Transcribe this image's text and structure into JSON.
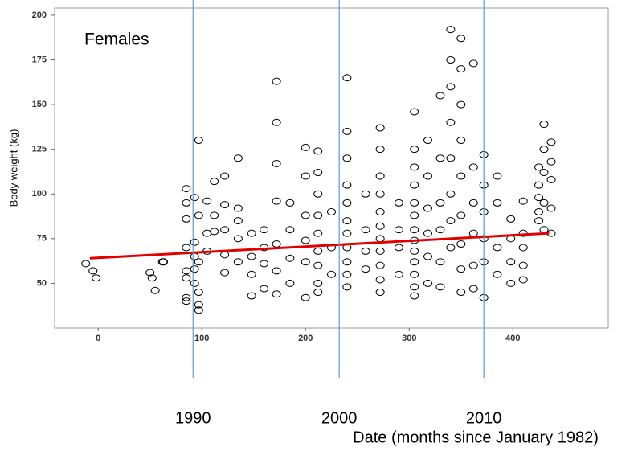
{
  "chart_data": {
    "type": "scatter",
    "annotation": "Females",
    "y_label": "Body weight (kg)",
    "x_label": "Date (months since January 1982)",
    "xlim": [
      -42,
      492
    ],
    "xticks": [
      0,
      100,
      200,
      300,
      400
    ],
    "ylim": [
      25,
      204
    ],
    "yticks": [
      50,
      75,
      100,
      125,
      150,
      175,
      200
    ],
    "grid": false,
    "marker_color": "#000000",
    "x": [
      -12,
      -5,
      -2,
      50,
      52,
      55,
      62,
      63,
      85,
      85,
      85,
      85,
      85,
      85,
      85,
      85,
      93,
      93,
      93,
      93,
      93,
      97,
      97,
      97,
      97,
      97,
      97,
      105,
      105,
      105,
      112,
      112,
      112,
      122,
      122,
      122,
      122,
      122,
      135,
      135,
      135,
      135,
      135,
      148,
      148,
      148,
      148,
      160,
      160,
      160,
      160,
      172,
      172,
      172,
      172,
      172,
      172,
      172,
      185,
      185,
      185,
      185,
      200,
      200,
      200,
      200,
      200,
      200,
      212,
      212,
      212,
      212,
      212,
      212,
      212,
      212,
      212,
      225,
      225,
      225,
      240,
      240,
      240,
      240,
      240,
      240,
      240,
      240,
      240,
      240,
      240,
      258,
      258,
      258,
      258,
      272,
      272,
      272,
      272,
      272,
      272,
      272,
      272,
      272,
      272,
      272,
      290,
      290,
      290,
      290,
      305,
      305,
      305,
      305,
      305,
      305,
      305,
      305,
      305,
      305,
      305,
      305,
      305,
      318,
      318,
      318,
      318,
      318,
      318,
      330,
      330,
      330,
      330,
      330,
      330,
      340,
      340,
      340,
      340,
      340,
      340,
      340,
      340,
      350,
      350,
      350,
      350,
      350,
      350,
      350,
      350,
      350,
      362,
      362,
      362,
      362,
      362,
      362,
      372,
      372,
      372,
      372,
      372,
      372,
      385,
      385,
      385,
      385,
      398,
      398,
      398,
      398,
      410,
      410,
      410,
      410,
      410,
      425,
      425,
      425,
      425,
      425,
      430,
      430,
      430,
      430,
      430,
      437,
      437,
      437,
      437,
      437
    ],
    "values": [
      61,
      57,
      53,
      56,
      53,
      46,
      62,
      62,
      103,
      95,
      86,
      70,
      57,
      53,
      42,
      40,
      98,
      73,
      65,
      58,
      50,
      130,
      88,
      62,
      45,
      38,
      35,
      96,
      78,
      68,
      107,
      88,
      79,
      110,
      94,
      80,
      66,
      56,
      120,
      92,
      85,
      75,
      62,
      78,
      65,
      55,
      43,
      80,
      70,
      61,
      47,
      163,
      140,
      117,
      96,
      72,
      57,
      44,
      95,
      80,
      64,
      50,
      126,
      110,
      88,
      74,
      62,
      42,
      124,
      112,
      100,
      88,
      78,
      68,
      60,
      50,
      45,
      90,
      70,
      55,
      165,
      135,
      120,
      105,
      95,
      85,
      78,
      70,
      62,
      55,
      48,
      100,
      80,
      68,
      58,
      137,
      125,
      110,
      100,
      90,
      82,
      75,
      68,
      60,
      52,
      45,
      95,
      80,
      70,
      55,
      146,
      125,
      115,
      105,
      95,
      88,
      80,
      74,
      68,
      62,
      55,
      48,
      43,
      130,
      110,
      92,
      78,
      65,
      50,
      155,
      120,
      95,
      80,
      62,
      48,
      192,
      175,
      160,
      140,
      120,
      100,
      85,
      70,
      187,
      170,
      150,
      130,
      110,
      88,
      72,
      58,
      45,
      173,
      115,
      95,
      78,
      60,
      47,
      122,
      105,
      90,
      75,
      62,
      42,
      110,
      95,
      70,
      55,
      86,
      75,
      62,
      50,
      96,
      78,
      70,
      60,
      52,
      115,
      105,
      98,
      90,
      85,
      139,
      125,
      112,
      95,
      80,
      129,
      118,
      108,
      92,
      78
    ],
    "trend": {
      "color": "#e00000",
      "x": [
        -8,
        435
      ],
      "values": [
        64,
        78
      ]
    },
    "year_lines": {
      "color": "#5b9bd5",
      "x": [
        91.5,
        232.5,
        372
      ],
      "labels": [
        "1990",
        "2000",
        "2010"
      ]
    }
  }
}
